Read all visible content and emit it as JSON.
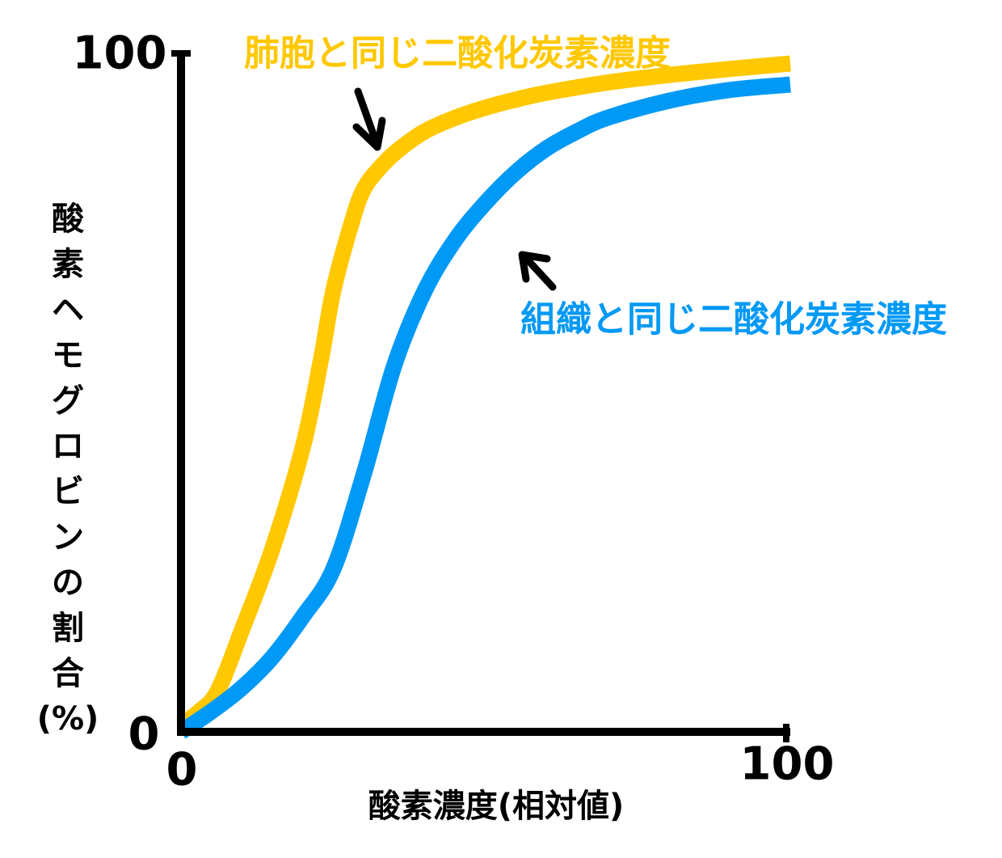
{
  "chart_data": {
    "type": "line",
    "xlabel": "酸素濃度(相対値)",
    "ylabel": "酸素ヘモグロビンの割合(%)",
    "ylabel_chars": [
      "酸",
      "素",
      "ヘ",
      "モ",
      "グ",
      "ロ",
      "ビ",
      "ン",
      "の",
      "割",
      "合",
      "(%)"
    ],
    "xlim": [
      0,
      100
    ],
    "ylim": [
      0,
      100
    ],
    "x_ticks": [
      "0",
      "100"
    ],
    "y_ticks": [
      "0",
      "100"
    ],
    "grid": false,
    "series": [
      {
        "name": "肺胞と同じ二酸化炭素濃度",
        "color": "#FFC800",
        "x": [
          0,
          3,
          6,
          10,
          15,
          20,
          23,
          25,
          28,
          30,
          33,
          36,
          40,
          45,
          50,
          55,
          60,
          70,
          80,
          90,
          100
        ],
        "y": [
          1,
          3,
          6,
          15,
          27,
          42,
          55,
          65,
          75,
          80,
          83.5,
          86,
          88.5,
          90.5,
          92,
          93.2,
          94.2,
          95.7,
          96.8,
          97.7,
          98.5
        ]
      },
      {
        "name": "組織と同じ二酸化炭素濃度",
        "color": "#0099F5",
        "x": [
          0,
          5,
          10,
          15,
          20,
          25,
          30,
          35,
          40,
          45,
          50,
          55,
          60,
          65,
          70,
          80,
          90,
          100
        ],
        "y": [
          0,
          3,
          6.5,
          11,
          17,
          24,
          38,
          54,
          65,
          72.5,
          78,
          82.5,
          86,
          88.5,
          90.5,
          93,
          94.6,
          95.4
        ]
      }
    ],
    "annotations": [
      {
        "text": "肺胞と同じ二酸化炭素濃度",
        "color": "#FFC800"
      },
      {
        "text": "組織と同じ二酸化炭素濃度",
        "color": "#0099F5"
      }
    ]
  }
}
